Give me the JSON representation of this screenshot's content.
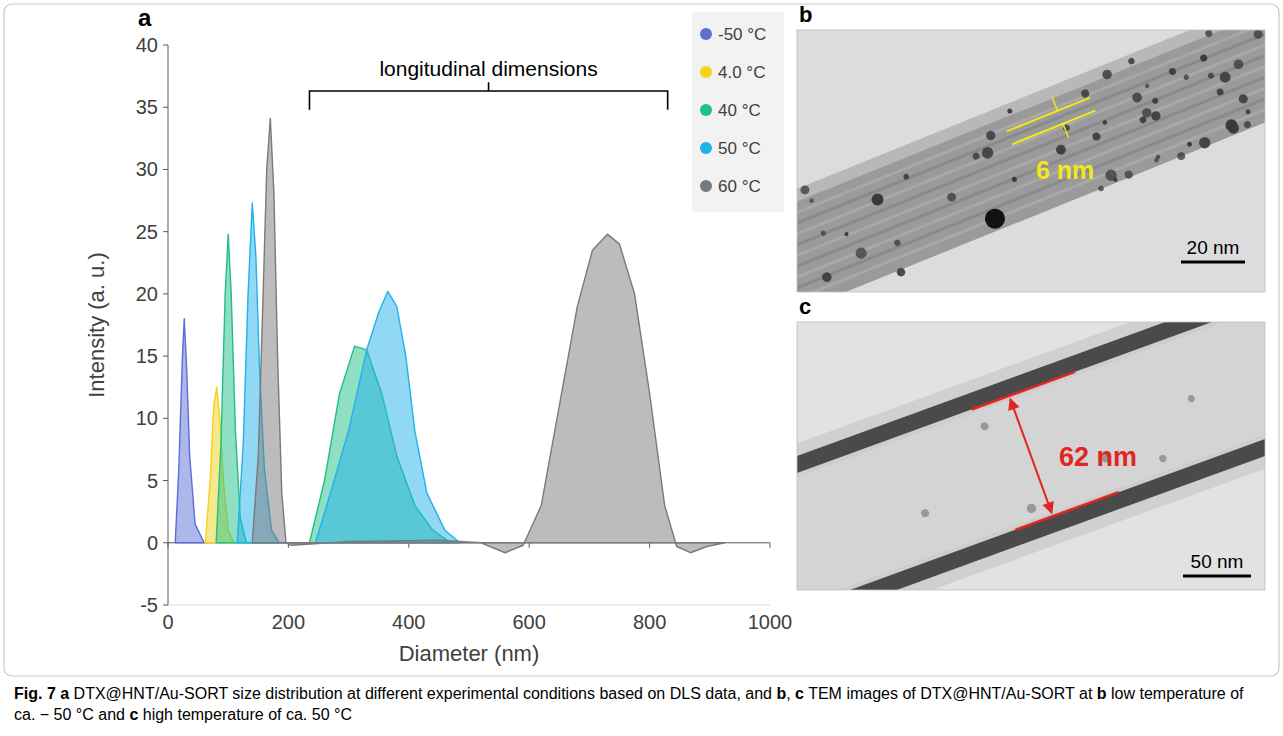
{
  "chart_data": {
    "type": "area",
    "x_label": "Diameter (nm)",
    "y_label": "Intensity (a. u.)",
    "xlim": [
      0,
      1000
    ],
    "xticks": [
      0,
      200,
      400,
      600,
      800,
      1000
    ],
    "ylim": [
      -5,
      40
    ],
    "yticks": [
      -5,
      0,
      5,
      10,
      15,
      20,
      25,
      30,
      35,
      40
    ],
    "grid": false,
    "legend": "top-right",
    "annotations": [
      {
        "text": "longitudinal dimensions",
        "x": [
          235,
          830
        ],
        "y": 36.3
      }
    ],
    "series": [
      {
        "name": "-50 °C",
        "color": "#5b6fd6",
        "x": [
          12,
          18,
          24,
          27,
          31,
          36,
          45,
          60
        ],
        "values": [
          0,
          6,
          15,
          18,
          14,
          7,
          1.5,
          0
        ]
      },
      {
        "name": "4.0 °C",
        "color": "#f2d21b",
        "x": [
          62,
          70,
          76,
          81,
          86,
          92,
          100,
          110
        ],
        "values": [
          0,
          5,
          11,
          12.5,
          10,
          5,
          1,
          0
        ]
      },
      {
        "name": "40 °C",
        "color": "#1fbf85",
        "x": [
          80,
          88,
          95,
          100,
          105,
          112,
          120,
          130,
          235,
          260,
          285,
          310,
          330,
          355,
          380,
          410,
          440,
          470
        ],
        "values": [
          0,
          8,
          20,
          24.8,
          20,
          9,
          2,
          0,
          0,
          5,
          12,
          15.8,
          15.5,
          12,
          7,
          3,
          1,
          0
        ]
      },
      {
        "name": "50 °C",
        "color": "#22b2ea",
        "x": [
          115,
          125,
          133,
          140,
          146,
          152,
          160,
          172,
          185,
          245,
          270,
          300,
          330,
          350,
          365,
          380,
          395,
          410,
          430,
          460,
          485
        ],
        "values": [
          0,
          8,
          20,
          27.3,
          23,
          14,
          6,
          1,
          0,
          0,
          4,
          9,
          15.5,
          18.5,
          20.2,
          19,
          15,
          9,
          4,
          1,
          0
        ]
      },
      {
        "name": "60 °C",
        "color": "#7a7a7a",
        "x": [
          140,
          150,
          158,
          164,
          170,
          176,
          182,
          189,
          196,
          205,
          300,
          450,
          520,
          560,
          590,
          620,
          650,
          680,
          705,
          730,
          750,
          775,
          800,
          825,
          845,
          868,
          895,
          925
        ],
        "values": [
          0,
          7,
          20,
          30,
          34.1,
          28,
          15,
          4,
          0,
          -0.2,
          0.1,
          0.2,
          0,
          -0.8,
          -0.2,
          3,
          11,
          19,
          23.5,
          24.8,
          24,
          20,
          12,
          3,
          -0.3,
          -0.8,
          -0.3,
          0
        ]
      }
    ]
  },
  "chart_label": "a",
  "tem_panels": [
    {
      "label": "b",
      "measurement": "6 nm",
      "scale_bar": "20 nm"
    },
    {
      "label": "c",
      "measurement": "62 nm",
      "scale_bar": "50 nm"
    }
  ],
  "caption": [
    {
      "text": "Fig. 7",
      "bold": true
    },
    {
      "text": " a",
      "bold": true
    },
    {
      "text": " DTX@HNT/Au-SORT size distribution at different experimental conditions based on DLS data, and"
    },
    {
      "text": " b",
      "bold": true
    },
    {
      "text": ","
    },
    {
      "text": " c",
      "bold": true
    },
    {
      "text": " TEM images of DTX@HNT/Au-SORT at"
    },
    {
      "text": " b",
      "bold": true
    },
    {
      "text": " low temperature of ca. − 50 °C and"
    },
    {
      "text": " c",
      "bold": true
    },
    {
      "text": " high temperature of ca. 50 °C"
    }
  ]
}
